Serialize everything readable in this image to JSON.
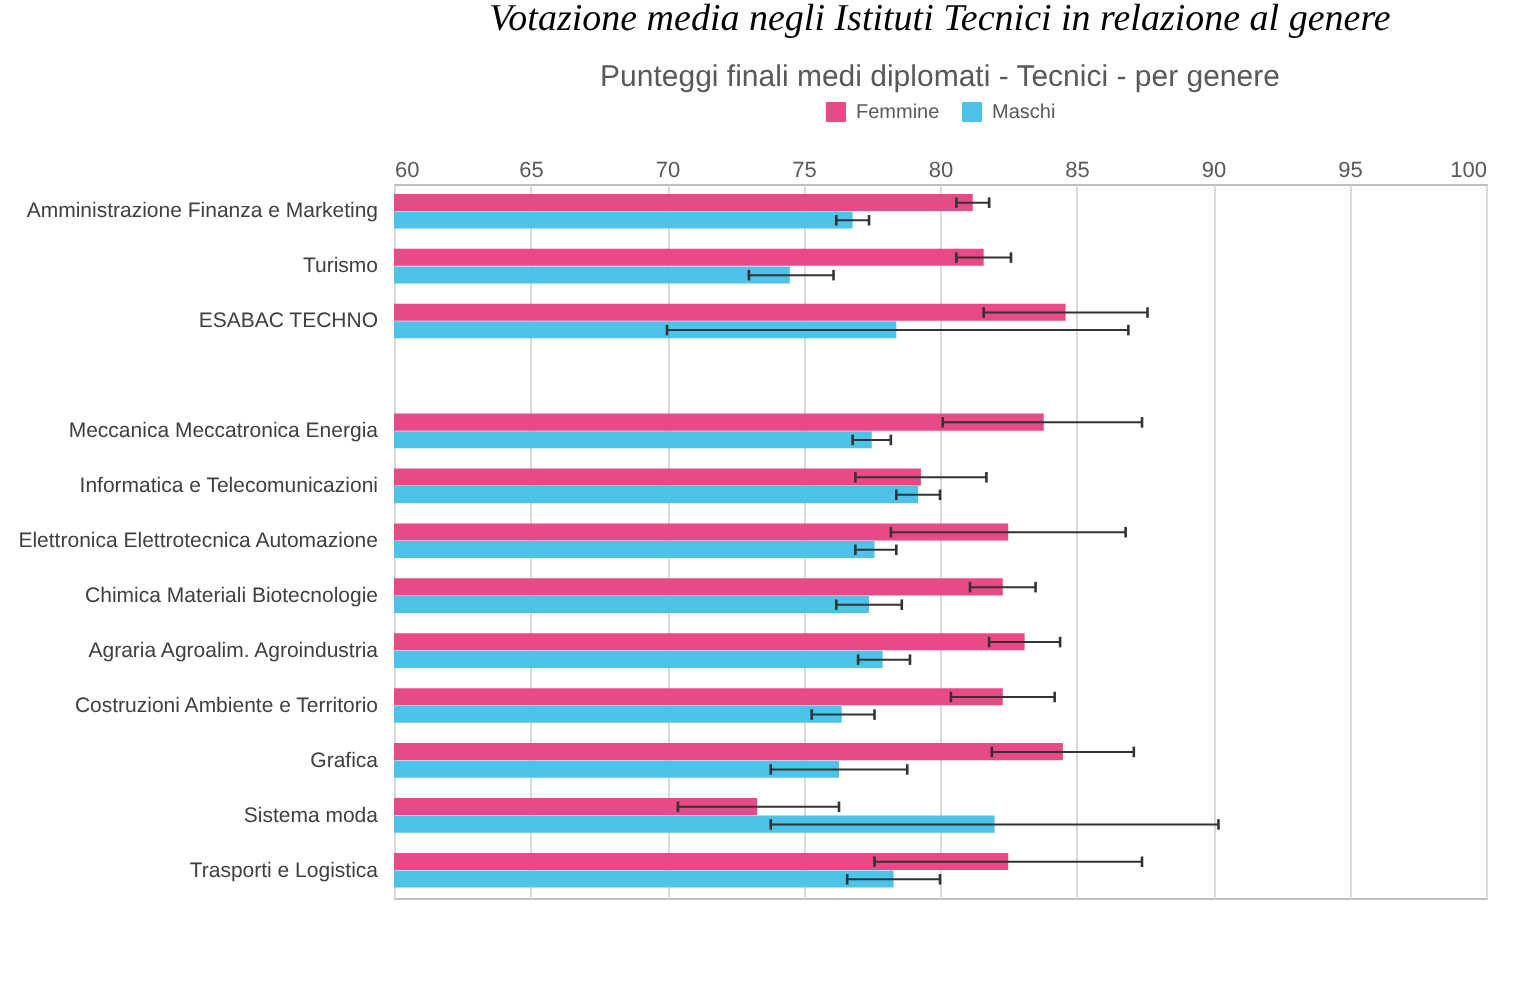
{
  "chart_data": {
    "type": "bar",
    "orientation": "horizontal",
    "title": "Votazione media negli Istituti Tecnici in relazione al genere",
    "subtitle": "Punteggi finali medi diplomati - Tecnici - per genere",
    "categories": [
      "Amministrazione Finanza e Marketing",
      "Turismo",
      "ESABAC TECHNO",
      null,
      "Meccanica Meccatronica Energia",
      "Informatica e Telecomunicazioni",
      "Elettronica Elettrotecnica Automazione",
      "Chimica Materiali Biotecnologie",
      "Agraria Agroalim. Agroindustria",
      "Costruzioni Ambiente e Territorio",
      "Grafica",
      "Sistema moda",
      "Trasporti e Logistica"
    ],
    "series": [
      {
        "name": "Femmine",
        "color": "#e94a87",
        "values": [
          81.2,
          81.6,
          84.6,
          null,
          83.8,
          79.3,
          82.5,
          82.3,
          83.1,
          82.3,
          84.5,
          73.3,
          82.5
        ],
        "errors": [
          [
            80.6,
            81.8
          ],
          [
            80.6,
            82.6
          ],
          [
            81.6,
            87.6
          ],
          null,
          [
            80.1,
            87.4
          ],
          [
            76.9,
            81.7
          ],
          [
            78.2,
            86.8
          ],
          [
            81.1,
            83.5
          ],
          [
            81.8,
            84.4
          ],
          [
            80.4,
            84.2
          ],
          [
            81.9,
            87.1
          ],
          [
            70.4,
            76.3
          ],
          [
            77.6,
            87.4
          ]
        ]
      },
      {
        "name": "Maschi",
        "color": "#4dc3ea",
        "values": [
          76.8,
          74.5,
          78.4,
          null,
          77.5,
          79.2,
          77.6,
          77.4,
          77.9,
          76.4,
          76.3,
          82.0,
          78.3
        ],
        "errors": [
          [
            76.2,
            77.4
          ],
          [
            73.0,
            76.1
          ],
          [
            70.0,
            86.9
          ],
          null,
          [
            76.8,
            78.2
          ],
          [
            78.4,
            80.0
          ],
          [
            76.9,
            78.4
          ],
          [
            76.2,
            78.6
          ],
          [
            77.0,
            78.9
          ],
          [
            75.3,
            77.6
          ],
          [
            73.8,
            78.8
          ],
          [
            73.8,
            90.2
          ],
          [
            76.6,
            80.0
          ]
        ]
      }
    ],
    "xlim": [
      60,
      100
    ],
    "xticks": [
      60,
      65,
      70,
      75,
      80,
      85,
      90,
      95,
      100
    ],
    "grid": "x",
    "legend": "top"
  }
}
